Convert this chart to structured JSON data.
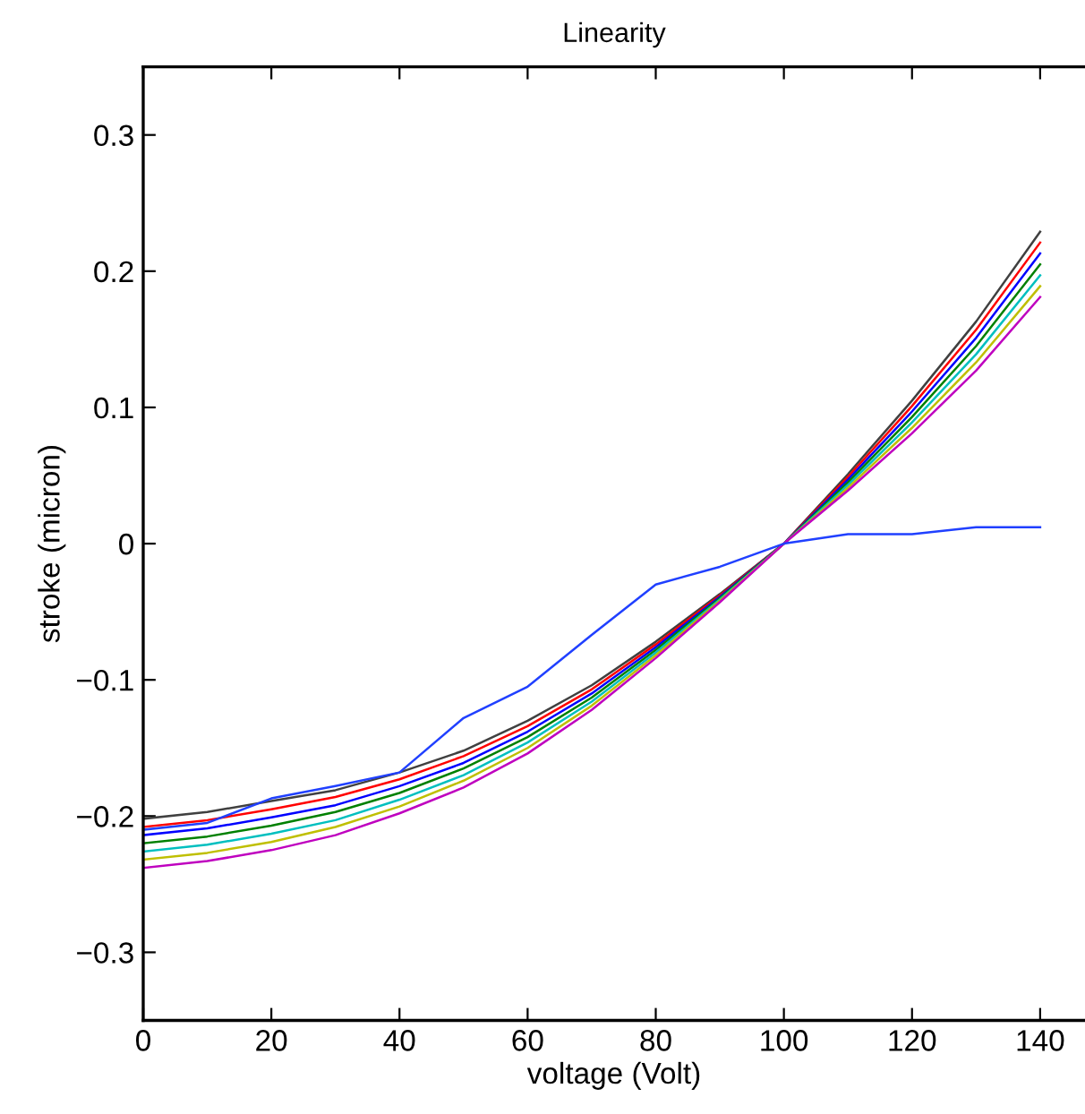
{
  "chart_data": {
    "type": "line",
    "title": "Linearity",
    "xlabel": "voltage (Volt)",
    "ylabel": "stroke (micron)",
    "x": [
      0,
      10,
      20,
      30,
      40,
      50,
      60,
      70,
      80,
      90,
      100,
      110,
      120,
      130,
      140
    ],
    "series": [
      {
        "color": "#404040",
        "values": [
          -0.202,
          -0.197,
          -0.189,
          -0.181,
          -0.168,
          -0.152,
          -0.13,
          -0.104,
          -0.072,
          -0.037,
          0,
          0.051,
          0.105,
          0.163,
          0.229
        ]
      },
      {
        "color": "#ff0000",
        "values": [
          -0.208,
          -0.203,
          -0.195,
          -0.186,
          -0.173,
          -0.156,
          -0.134,
          -0.107,
          -0.074,
          -0.038,
          0,
          0.049,
          0.101,
          0.157,
          0.221
        ]
      },
      {
        "color": "#0000ff",
        "values": [
          -0.214,
          -0.209,
          -0.201,
          -0.192,
          -0.178,
          -0.161,
          -0.138,
          -0.11,
          -0.076,
          -0.039,
          0,
          0.047,
          0.097,
          0.151,
          0.213
        ]
      },
      {
        "color": "#008000",
        "values": [
          -0.22,
          -0.215,
          -0.207,
          -0.197,
          -0.183,
          -0.165,
          -0.142,
          -0.113,
          -0.078,
          -0.04,
          0,
          0.045,
          0.093,
          0.145,
          0.205
        ]
      },
      {
        "color": "#00bfbf",
        "values": [
          -0.226,
          -0.221,
          -0.213,
          -0.203,
          -0.188,
          -0.17,
          -0.146,
          -0.116,
          -0.08,
          -0.041,
          0,
          0.043,
          0.089,
          0.139,
          0.197
        ]
      },
      {
        "color": "#bfbf00",
        "values": [
          -0.232,
          -0.227,
          -0.219,
          -0.208,
          -0.193,
          -0.174,
          -0.15,
          -0.119,
          -0.082,
          -0.042,
          0,
          0.041,
          0.085,
          0.133,
          0.189
        ]
      },
      {
        "color": "#bf00bf",
        "values": [
          -0.238,
          -0.233,
          -0.225,
          -0.214,
          -0.198,
          -0.179,
          -0.154,
          -0.122,
          -0.084,
          -0.043,
          0,
          0.039,
          0.081,
          0.127,
          0.181
        ]
      },
      {
        "color": "#2040ff",
        "values": [
          -0.21,
          -0.205,
          -0.187,
          -0.178,
          -0.168,
          -0.128,
          -0.105,
          -0.067,
          -0.03,
          -0.017,
          0,
          0.007,
          0.007,
          0.012,
          0.012
        ]
      }
    ],
    "xlim": [
      0,
      147
    ],
    "ylim": [
      -0.35,
      0.35
    ],
    "xticks": [
      0,
      20,
      40,
      60,
      80,
      100,
      120,
      140
    ],
    "yticks": [
      {
        "value": -0.3,
        "label": "−0.3"
      },
      {
        "value": -0.2,
        "label": "−0.2"
      },
      {
        "value": -0.1,
        "label": "−0.1"
      },
      0,
      0.1,
      0.2,
      0.3
    ],
    "grid": false,
    "legend": false,
    "marker": "none",
    "line_style": "solid"
  }
}
